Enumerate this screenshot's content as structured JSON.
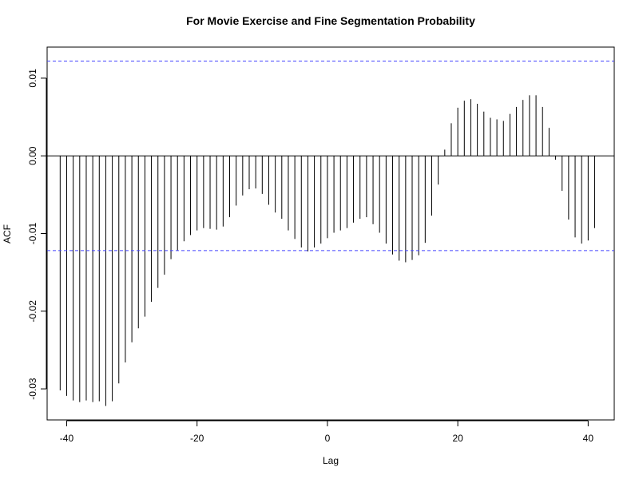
{
  "chart_data": {
    "type": "bar",
    "title": "For Movie Exercise and Fine Segmentation Probability",
    "xlabel": "Lag",
    "ylabel": "ACF",
    "xlim": [
      -43,
      44
    ],
    "ylim": [
      -0.034,
      0.014
    ],
    "x_ticks": [
      -40,
      -20,
      0,
      20,
      40
    ],
    "x_tick_labels": [
      "-40",
      "-20",
      "0",
      "20",
      "40"
    ],
    "y_ticks": [
      -0.03,
      -0.02,
      -0.01,
      0.0,
      0.01
    ],
    "y_tick_labels": [
      "-0.03",
      "-0.02",
      "-0.01",
      "0.00",
      "0.01"
    ],
    "confidence_bound": 0.0122,
    "zero_line": 0,
    "colors": {
      "bars": "#000000",
      "confidence_lines": "#4444ff",
      "zero_line": "#000000",
      "frame": "#000000"
    },
    "series": [
      {
        "lags": [
          -41,
          -40,
          -39,
          -38,
          -37,
          -36,
          -35,
          -34,
          -33,
          -32,
          -31,
          -30,
          -29,
          -28,
          -27,
          -26,
          -25,
          -24,
          -23,
          -22,
          -21,
          -20,
          -19,
          -18,
          -17,
          -16,
          -15,
          -14,
          -13,
          -12,
          -11,
          -10,
          -9,
          -8,
          -7,
          -6,
          -5,
          -4,
          -3,
          -2,
          -1,
          0,
          1,
          2,
          3,
          4,
          5,
          6,
          7,
          8,
          9,
          10,
          11,
          12,
          13,
          14,
          15,
          16,
          17,
          18,
          19,
          20,
          21,
          22,
          23,
          24,
          25,
          26,
          27,
          28,
          29,
          30,
          31,
          32,
          33,
          34,
          35,
          36,
          37,
          38,
          39,
          40,
          41
        ],
        "values": [
          -0.0302,
          -0.0309,
          -0.0315,
          -0.0317,
          -0.0315,
          -0.0317,
          -0.0316,
          -0.0322,
          -0.0316,
          -0.0293,
          -0.0266,
          -0.024,
          -0.0222,
          -0.0207,
          -0.0188,
          -0.017,
          -0.0153,
          -0.0133,
          -0.0122,
          -0.011,
          -0.0102,
          -0.0096,
          -0.0093,
          -0.0094,
          -0.0095,
          -0.0091,
          -0.0079,
          -0.0064,
          -0.0051,
          -0.0043,
          -0.0042,
          -0.0049,
          -0.0063,
          -0.0073,
          -0.0081,
          -0.0096,
          -0.0107,
          -0.0118,
          -0.0123,
          -0.0118,
          -0.0113,
          -0.0106,
          -0.0099,
          -0.0096,
          -0.0093,
          -0.0086,
          -0.0081,
          -0.0079,
          -0.0088,
          -0.0099,
          -0.0113,
          -0.0127,
          -0.0135,
          -0.0137,
          -0.0134,
          -0.0128,
          -0.0112,
          -0.0077,
          -0.0037,
          0.0008,
          0.0042,
          0.0062,
          0.0071,
          0.0073,
          0.0067,
          0.0057,
          0.0049,
          0.0047,
          0.0045,
          0.0054,
          0.0063,
          0.0072,
          0.0078,
          0.0078,
          0.0063,
          0.0036,
          -0.0005,
          -0.0045,
          -0.0082,
          -0.0105,
          -0.0113,
          -0.0109,
          -0.0093
        ]
      }
    ]
  }
}
